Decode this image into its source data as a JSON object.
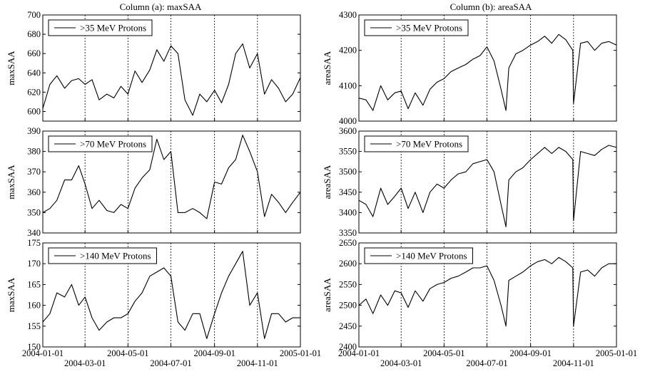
{
  "columns": [
    {
      "title": "Column (a): maxSAA"
    },
    {
      "title": "Column (b): areaSAA"
    }
  ],
  "x_ticks_top": [
    "2004-01-01",
    "2004-05-01",
    "2004-09-01",
    "2005-01-01"
  ],
  "x_ticks_bottom": [
    "2004-03-01",
    "2004-07-01",
    "2004-11-01"
  ],
  "chart_data": [
    {
      "type": "line",
      "column": "a",
      "row": 1,
      "ylabel": "maxSAA",
      "legend": ">35 MeV Protons",
      "legend_position": "top-left",
      "ylim": [
        590,
        700
      ],
      "yticks": [
        600,
        620,
        640,
        660,
        680,
        700
      ],
      "xlim": [
        "2004-01-01",
        "2005-01-01"
      ],
      "grid": "x-dashed",
      "x": [
        "2004-01-01",
        "2004-01-11",
        "2004-01-21",
        "2004-02-01",
        "2004-02-11",
        "2004-02-21",
        "2004-03-01",
        "2004-03-11",
        "2004-03-21",
        "2004-04-01",
        "2004-04-11",
        "2004-04-21",
        "2004-05-01",
        "2004-05-11",
        "2004-05-21",
        "2004-06-01",
        "2004-06-11",
        "2004-06-21",
        "2004-07-01",
        "2004-07-11",
        "2004-07-21",
        "2004-08-01",
        "2004-08-11",
        "2004-08-21",
        "2004-09-01",
        "2004-09-11",
        "2004-09-21",
        "2004-10-01",
        "2004-10-11",
        "2004-10-21",
        "2004-11-01",
        "2004-11-11",
        "2004-11-21",
        "2004-12-01",
        "2004-12-11",
        "2004-12-21",
        "2005-01-01"
      ],
      "y": [
        603,
        628,
        637,
        624,
        632,
        634,
        628,
        633,
        612,
        618,
        614,
        626,
        618,
        642,
        630,
        643,
        664,
        652,
        668,
        660,
        612,
        596,
        618,
        610,
        622,
        609,
        628,
        660,
        670,
        645,
        660,
        618,
        633,
        624,
        610,
        618,
        635
      ]
    },
    {
      "type": "line",
      "column": "a",
      "row": 2,
      "ylabel": "maxSAA",
      "legend": ">70 MeV Protons",
      "legend_position": "top-left",
      "ylim": [
        340,
        390
      ],
      "yticks": [
        340,
        350,
        360,
        370,
        380,
        390
      ],
      "xlim": [
        "2004-01-01",
        "2005-01-01"
      ],
      "grid": "x-dashed",
      "x": [
        "2004-01-01",
        "2004-01-11",
        "2004-01-21",
        "2004-02-01",
        "2004-02-11",
        "2004-02-21",
        "2004-03-01",
        "2004-03-11",
        "2004-03-21",
        "2004-04-01",
        "2004-04-11",
        "2004-04-21",
        "2004-05-01",
        "2004-05-11",
        "2004-05-21",
        "2004-06-01",
        "2004-06-11",
        "2004-06-21",
        "2004-07-01",
        "2004-07-11",
        "2004-07-21",
        "2004-08-01",
        "2004-08-11",
        "2004-08-21",
        "2004-09-01",
        "2004-09-11",
        "2004-09-21",
        "2004-10-01",
        "2004-10-11",
        "2004-10-21",
        "2004-11-01",
        "2004-11-11",
        "2004-11-21",
        "2004-12-01",
        "2004-12-11",
        "2004-12-21",
        "2005-01-01"
      ],
      "y": [
        350,
        352,
        356,
        366,
        366,
        373,
        364,
        352,
        356,
        351,
        350,
        354,
        352,
        362,
        367,
        371,
        386,
        376,
        380,
        350,
        350,
        352,
        350,
        347,
        365,
        364,
        372,
        376,
        388,
        380,
        370,
        348,
        359,
        355,
        350,
        355,
        360
      ]
    },
    {
      "type": "line",
      "column": "a",
      "row": 3,
      "ylabel": "maxSAA",
      "legend": ">140 MeV Protons",
      "legend_position": "top-left",
      "ylim": [
        150,
        175
      ],
      "yticks": [
        150,
        155,
        160,
        165,
        170,
        175
      ],
      "xlim": [
        "2004-01-01",
        "2005-01-01"
      ],
      "grid": "x-dashed",
      "x": [
        "2004-01-01",
        "2004-01-11",
        "2004-01-21",
        "2004-02-01",
        "2004-02-11",
        "2004-02-21",
        "2004-03-01",
        "2004-03-11",
        "2004-03-21",
        "2004-04-01",
        "2004-04-11",
        "2004-04-21",
        "2004-05-01",
        "2004-05-11",
        "2004-05-21",
        "2004-06-01",
        "2004-06-11",
        "2004-06-21",
        "2004-07-01",
        "2004-07-11",
        "2004-07-21",
        "2004-08-01",
        "2004-08-11",
        "2004-08-21",
        "2004-09-01",
        "2004-09-11",
        "2004-09-21",
        "2004-10-01",
        "2004-10-11",
        "2004-10-21",
        "2004-11-01",
        "2004-11-11",
        "2004-11-21",
        "2004-12-01",
        "2004-12-11",
        "2004-12-21",
        "2005-01-01"
      ],
      "y": [
        156,
        158,
        163,
        162,
        165,
        160,
        162,
        157,
        154,
        156,
        157,
        157,
        158,
        161,
        163,
        167,
        168,
        169,
        167,
        156,
        154,
        158,
        158,
        152,
        158,
        163,
        167,
        170,
        173,
        160,
        163,
        152,
        158,
        158,
        156,
        157,
        157
      ]
    },
    {
      "type": "line",
      "column": "b",
      "row": 1,
      "ylabel": "areaSAA",
      "legend": ">35 MeV Protons",
      "legend_position": "top-left",
      "ylim": [
        4000,
        4300
      ],
      "yticks": [
        4000,
        4100,
        4200,
        4300
      ],
      "xlim": [
        "2004-01-01",
        "2005-01-01"
      ],
      "grid": "x-dashed",
      "x": [
        "2004-01-01",
        "2004-01-11",
        "2004-01-21",
        "2004-02-01",
        "2004-02-11",
        "2004-02-21",
        "2004-03-01",
        "2004-03-11",
        "2004-03-21",
        "2004-04-01",
        "2004-04-11",
        "2004-04-21",
        "2004-05-01",
        "2004-05-11",
        "2004-05-21",
        "2004-06-01",
        "2004-06-11",
        "2004-06-21",
        "2004-07-01",
        "2004-07-11",
        "2004-07-21",
        "2004-07-28",
        "2004-08-01",
        "2004-08-11",
        "2004-08-21",
        "2004-09-01",
        "2004-09-11",
        "2004-09-21",
        "2004-10-01",
        "2004-10-11",
        "2004-10-21",
        "2004-10-31",
        "2004-11-01",
        "2004-11-11",
        "2004-11-21",
        "2004-12-01",
        "2004-12-11",
        "2004-12-21",
        "2005-01-01"
      ],
      "y": [
        4065,
        4060,
        4030,
        4100,
        4060,
        4080,
        4085,
        4035,
        4080,
        4045,
        4090,
        4110,
        4120,
        4140,
        4150,
        4160,
        4175,
        4185,
        4210,
        4170,
        4090,
        4030,
        4150,
        4190,
        4200,
        4215,
        4225,
        4240,
        4220,
        4245,
        4230,
        4200,
        4050,
        4220,
        4225,
        4200,
        4220,
        4225,
        4215
      ]
    },
    {
      "type": "line",
      "column": "b",
      "row": 2,
      "ylabel": "areaSAA",
      "legend": ">70 MeV Protons",
      "legend_position": "top-left",
      "ylim": [
        3350,
        3600
      ],
      "yticks": [
        3350,
        3400,
        3450,
        3500,
        3550,
        3600
      ],
      "xlim": [
        "2004-01-01",
        "2005-01-01"
      ],
      "grid": "x-dashed",
      "x": [
        "2004-01-01",
        "2004-01-11",
        "2004-01-21",
        "2004-02-01",
        "2004-02-11",
        "2004-02-21",
        "2004-03-01",
        "2004-03-11",
        "2004-03-21",
        "2004-04-01",
        "2004-04-11",
        "2004-04-21",
        "2004-05-01",
        "2004-05-11",
        "2004-05-21",
        "2004-06-01",
        "2004-06-11",
        "2004-06-21",
        "2004-07-01",
        "2004-07-11",
        "2004-07-21",
        "2004-07-28",
        "2004-08-01",
        "2004-08-11",
        "2004-08-21",
        "2004-09-01",
        "2004-09-11",
        "2004-09-21",
        "2004-10-01",
        "2004-10-11",
        "2004-10-21",
        "2004-10-31",
        "2004-11-01",
        "2004-11-11",
        "2004-11-21",
        "2004-12-01",
        "2004-12-11",
        "2004-12-21",
        "2005-01-01"
      ],
      "y": [
        3430,
        3420,
        3390,
        3460,
        3420,
        3440,
        3460,
        3410,
        3450,
        3400,
        3450,
        3470,
        3460,
        3480,
        3495,
        3500,
        3520,
        3525,
        3530,
        3500,
        3420,
        3365,
        3480,
        3500,
        3510,
        3530,
        3545,
        3560,
        3545,
        3560,
        3550,
        3530,
        3380,
        3550,
        3545,
        3540,
        3555,
        3565,
        3560
      ]
    },
    {
      "type": "line",
      "column": "b",
      "row": 3,
      "ylabel": "areaSAA",
      "legend": ">140 MeV Protons",
      "legend_position": "top-left",
      "ylim": [
        2400,
        2650
      ],
      "yticks": [
        2400,
        2450,
        2500,
        2550,
        2600,
        2650
      ],
      "xlim": [
        "2004-01-01",
        "2005-01-01"
      ],
      "grid": "x-dashed",
      "x": [
        "2004-01-01",
        "2004-01-11",
        "2004-01-21",
        "2004-02-01",
        "2004-02-11",
        "2004-02-21",
        "2004-03-01",
        "2004-03-11",
        "2004-03-21",
        "2004-04-01",
        "2004-04-11",
        "2004-04-21",
        "2004-05-01",
        "2004-05-11",
        "2004-05-21",
        "2004-06-01",
        "2004-06-11",
        "2004-06-21",
        "2004-07-01",
        "2004-07-11",
        "2004-07-21",
        "2004-07-28",
        "2004-08-01",
        "2004-08-11",
        "2004-08-21",
        "2004-09-01",
        "2004-09-11",
        "2004-09-21",
        "2004-10-01",
        "2004-10-11",
        "2004-10-21",
        "2004-10-31",
        "2004-11-01",
        "2004-11-11",
        "2004-11-21",
        "2004-12-01",
        "2004-12-11",
        "2004-12-21",
        "2005-01-01"
      ],
      "y": [
        2500,
        2515,
        2480,
        2525,
        2500,
        2535,
        2530,
        2495,
        2535,
        2510,
        2540,
        2550,
        2555,
        2565,
        2570,
        2580,
        2590,
        2590,
        2595,
        2560,
        2500,
        2450,
        2560,
        2570,
        2580,
        2595,
        2605,
        2610,
        2600,
        2615,
        2605,
        2590,
        2450,
        2580,
        2585,
        2570,
        2590,
        2600,
        2600
      ]
    }
  ]
}
